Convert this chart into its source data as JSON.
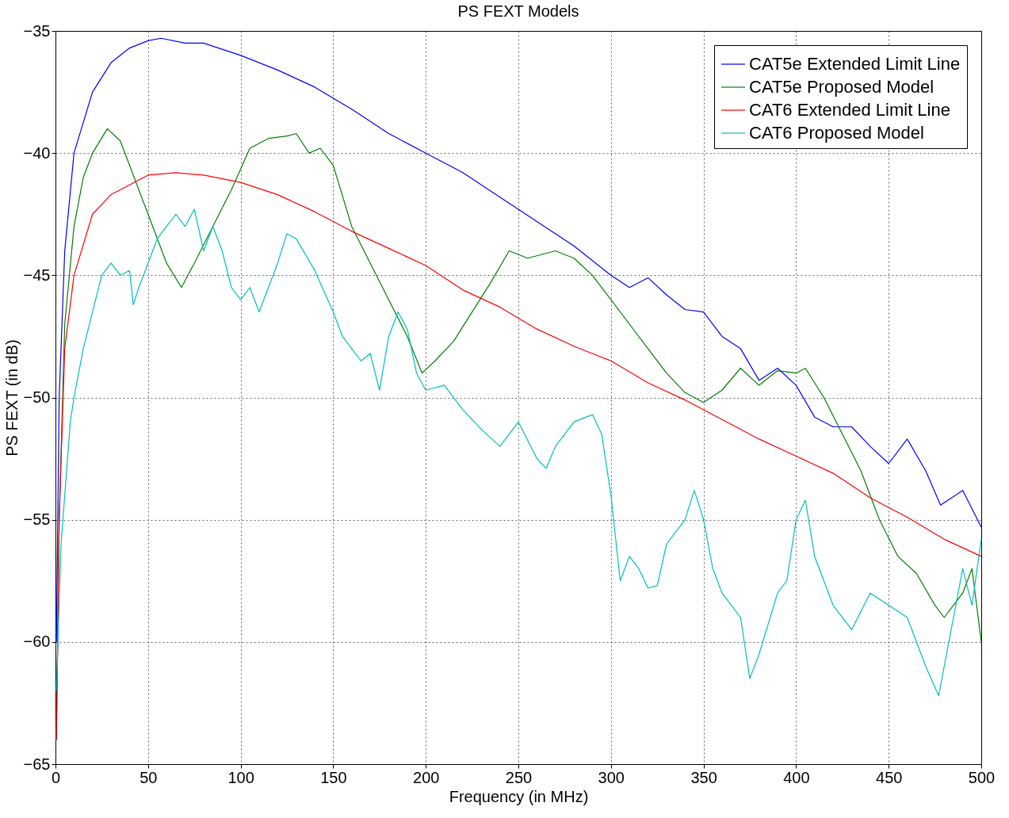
{
  "chart_data": {
    "type": "line",
    "title": "PS FEXT Models",
    "xlabel": "Frequency (in MHz)",
    "ylabel": "PS FEXT (in dB)",
    "xlim": [
      0,
      500
    ],
    "xticks": [
      0,
      50,
      100,
      150,
      200,
      250,
      300,
      350,
      400,
      450,
      500
    ],
    "ylim": [
      -65,
      -35
    ],
    "yticks": [
      -65,
      -60,
      -55,
      -50,
      -45,
      -40,
      -35
    ],
    "grid": true,
    "legend": "top right",
    "line_style": "solid",
    "marker": "none",
    "series": [
      {
        "name": "CAT5e Extended Limit Line",
        "color": "#0000ff",
        "x": [
          0.5,
          2,
          5,
          10,
          20,
          30,
          40,
          50,
          57,
          70,
          80,
          100,
          120,
          140,
          160,
          180,
          200,
          220,
          240,
          260,
          280,
          300,
          310,
          320,
          330,
          340,
          350,
          360,
          370,
          380,
          390,
          400,
          410,
          420,
          430,
          440,
          450,
          460,
          470,
          478,
          490,
          500
        ],
        "values": [
          -60,
          -50,
          -44,
          -40,
          -37.5,
          -36.3,
          -35.7,
          -35.4,
          -35.3,
          -35.5,
          -35.5,
          -36,
          -36.6,
          -37.3,
          -38.2,
          -39.2,
          -40,
          -40.8,
          -41.8,
          -42.8,
          -43.8,
          -45,
          -45.5,
          -45.1,
          -45.8,
          -46.4,
          -46.5,
          -47.5,
          -48,
          -49.3,
          -48.8,
          -49.5,
          -50.8,
          -51.2,
          -51.2,
          -52,
          -52.7,
          -51.7,
          -53,
          -54.4,
          -53.8,
          -55.3
        ]
      },
      {
        "name": "CAT5e Proposed Model",
        "color": "#008000",
        "x": [
          0.5,
          2,
          5,
          10,
          15,
          20,
          28,
          35,
          40,
          50,
          60,
          68,
          75,
          85,
          95,
          105,
          115,
          125,
          130,
          137,
          143,
          150,
          160,
          170,
          180,
          190,
          198,
          205,
          215,
          225,
          235,
          245,
          255,
          270,
          280,
          290,
          300,
          310,
          320,
          330,
          340,
          350,
          360,
          370,
          380,
          390,
          400,
          405,
          415,
          425,
          435,
          445,
          455,
          465,
          475,
          480,
          490,
          495,
          500
        ],
        "values": [
          -64,
          -55,
          -47,
          -43,
          -41,
          -40,
          -39,
          -39.5,
          -40.5,
          -42.5,
          -44.5,
          -45.5,
          -44.5,
          -43,
          -41.5,
          -39.8,
          -39.4,
          -39.3,
          -39.2,
          -40,
          -39.8,
          -40.5,
          -43,
          -44.5,
          -46,
          -47.5,
          -49,
          -48.5,
          -47.7,
          -46.5,
          -45.3,
          -44,
          -44.3,
          -44,
          -44.3,
          -45,
          -46,
          -47,
          -48,
          -49,
          -49.8,
          -50.2,
          -49.7,
          -48.8,
          -49.5,
          -48.9,
          -49,
          -48.8,
          -50,
          -51.5,
          -53,
          -55,
          -56.5,
          -57.2,
          -58.5,
          -59,
          -58,
          -57,
          -60
        ]
      },
      {
        "name": "CAT6 Extended Limit Line",
        "color": "#ff0000",
        "x": [
          0.5,
          2,
          5,
          10,
          20,
          30,
          50,
          65,
          80,
          100,
          120,
          140,
          160,
          180,
          200,
          220,
          240,
          260,
          280,
          300,
          320,
          340,
          360,
          380,
          400,
          420,
          440,
          460,
          480,
          500
        ],
        "values": [
          -64,
          -55,
          -48,
          -45,
          -42.5,
          -41.7,
          -40.9,
          -40.8,
          -40.9,
          -41.2,
          -41.7,
          -42.4,
          -43.2,
          -43.9,
          -44.6,
          -45.6,
          -46.3,
          -47.2,
          -47.9,
          -48.5,
          -49.4,
          -50.1,
          -50.9,
          -51.7,
          -52.4,
          -53.1,
          -54.1,
          -54.9,
          -55.8,
          -56.5
        ]
      },
      {
        "name": "CAT6 Proposed Model",
        "color": "#00bfbf",
        "x": [
          0.5,
          3,
          5,
          8,
          10,
          15,
          20,
          25,
          30,
          35,
          40,
          42,
          45,
          50,
          55,
          60,
          65,
          70,
          75,
          80,
          85,
          90,
          95,
          100,
          105,
          110,
          115,
          120,
          125,
          130,
          140,
          150,
          155,
          160,
          165,
          170,
          175,
          180,
          185,
          190,
          195,
          200,
          210,
          220,
          230,
          240,
          250,
          260,
          265,
          270,
          280,
          290,
          295,
          300,
          305,
          310,
          315,
          320,
          325,
          330,
          340,
          345,
          350,
          355,
          360,
          370,
          375,
          380,
          390,
          395,
          400,
          405,
          410,
          420,
          430,
          440,
          450,
          460,
          470,
          477,
          485,
          490,
          495,
          500
        ],
        "values": [
          -62,
          -56,
          -54,
          -51,
          -50,
          -48,
          -46.5,
          -45,
          -44.5,
          -45,
          -44.8,
          -46.2,
          -45.5,
          -44.5,
          -43.5,
          -43,
          -42.5,
          -43,
          -42.3,
          -44,
          -43,
          -44,
          -45.5,
          -46,
          -45.5,
          -46.5,
          -45.5,
          -44.5,
          -43.3,
          -43.5,
          -44.8,
          -46.5,
          -47.5,
          -48,
          -48.5,
          -48.2,
          -49.7,
          -47.5,
          -46.5,
          -47.2,
          -49,
          -49.7,
          -49.5,
          -50.5,
          -51.3,
          -52,
          -51,
          -52.5,
          -52.9,
          -52,
          -51,
          -50.7,
          -51.5,
          -54,
          -57.5,
          -56.5,
          -57,
          -57.8,
          -57.7,
          -56,
          -55,
          -53.8,
          -55,
          -57,
          -58,
          -59,
          -61.5,
          -60.5,
          -58,
          -57.5,
          -55,
          -54.2,
          -56.5,
          -58.5,
          -59.5,
          -58,
          -58.5,
          -59,
          -61,
          -62.2,
          -59,
          -57,
          -58.5,
          -55.8
        ]
      }
    ]
  }
}
